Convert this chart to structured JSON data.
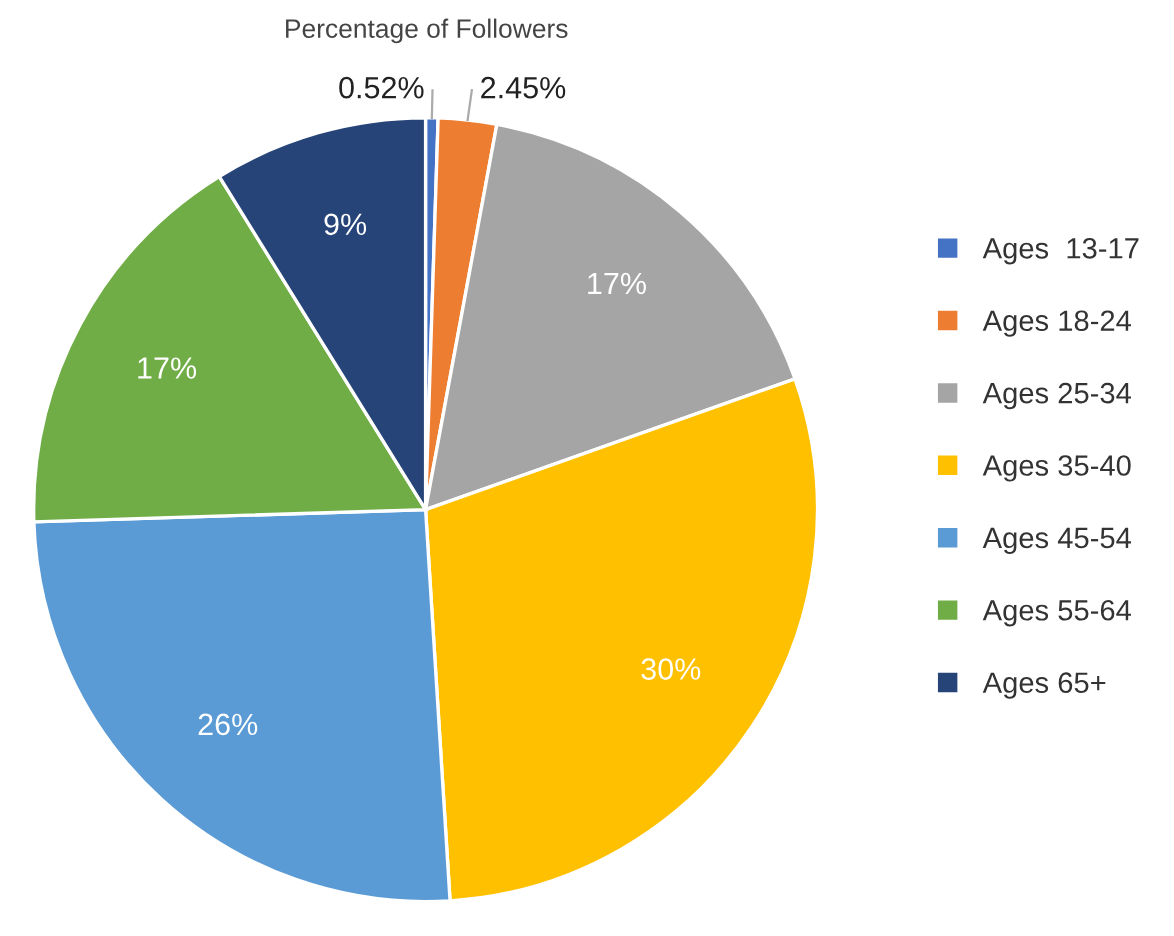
{
  "chart_data": {
    "type": "pie",
    "title": "Percentage of Followers",
    "categories": [
      "Ages  13-17",
      "Ages 18-24",
      "Ages 25-34",
      "Ages 35-40",
      "Ages 45-54",
      "Ages 55-64",
      "Ages 65+"
    ],
    "values": [
      0.52,
      2.45,
      17,
      30,
      26,
      17,
      9
    ],
    "value_labels": [
      "0.52%",
      "2.45%",
      "17%",
      "30%",
      "26%",
      "17%",
      "9%"
    ],
    "colors": [
      "#4472c4",
      "#ed7d31",
      "#a5a5a5",
      "#ffc000",
      "#5b9bd5",
      "#70ad47",
      "#264478"
    ],
    "legend": "right"
  }
}
